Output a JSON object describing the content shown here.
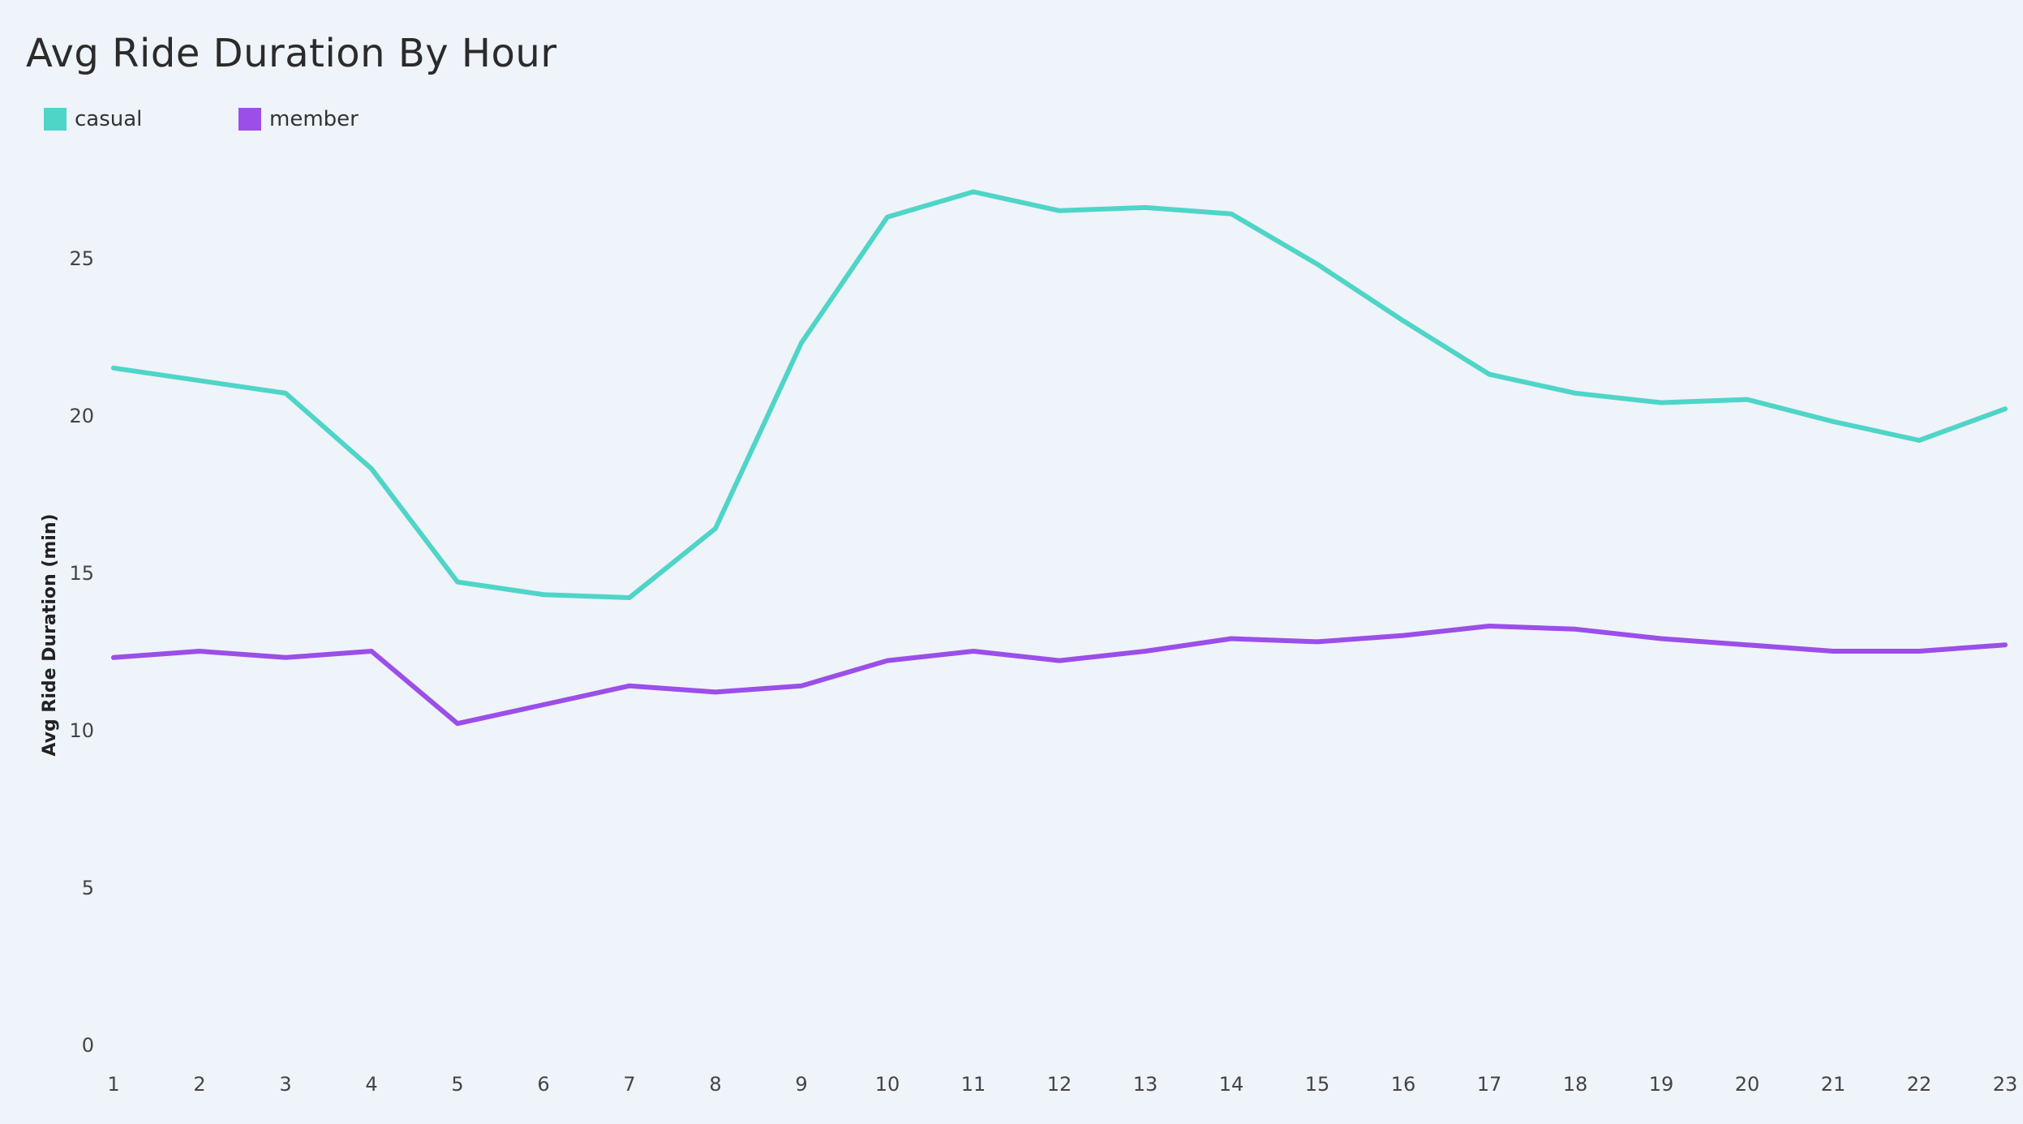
{
  "chart_data": {
    "type": "line",
    "title": "Avg Ride Duration By Hour",
    "xlabel": "",
    "ylabel": "Avg Ride Duration (min)",
    "ylim": [
      0,
      27.5
    ],
    "yticks": [
      0,
      5,
      10,
      15,
      20,
      25
    ],
    "grid": false,
    "legend_position": "top-left",
    "x": [
      1,
      2,
      3,
      4,
      5,
      6,
      7,
      8,
      9,
      10,
      11,
      12,
      13,
      14,
      15,
      16,
      17,
      18,
      19,
      20,
      21,
      22,
      23
    ],
    "series": [
      {
        "name": "casual",
        "color": "#4fd5c8",
        "values": [
          21.5,
          21.1,
          20.7,
          18.3,
          14.7,
          14.3,
          14.2,
          16.4,
          22.3,
          26.3,
          27.1,
          26.5,
          26.6,
          26.4,
          24.8,
          23.0,
          21.3,
          20.7,
          20.4,
          20.5,
          19.8,
          19.2,
          20.2
        ]
      },
      {
        "name": "member",
        "color": "#9b4fe8",
        "values": [
          12.3,
          12.5,
          12.3,
          12.5,
          10.2,
          10.8,
          11.4,
          11.2,
          11.4,
          12.2,
          12.5,
          12.2,
          12.5,
          12.9,
          12.8,
          13.0,
          13.3,
          13.2,
          12.9,
          12.7,
          12.5,
          12.5,
          12.7
        ]
      }
    ]
  }
}
